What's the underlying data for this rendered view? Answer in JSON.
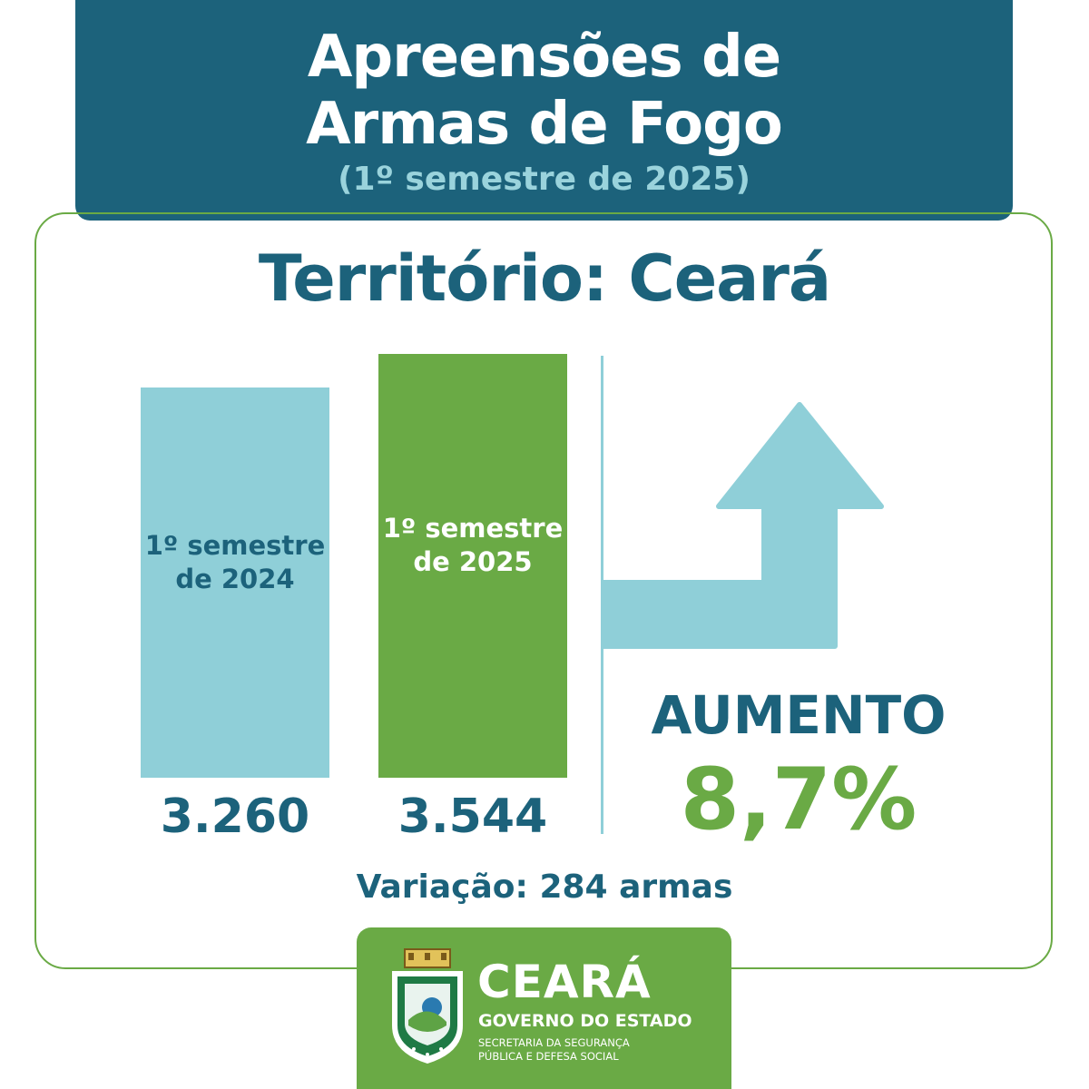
{
  "header": {
    "title_line1": "Apreensões de",
    "title_line2": "Armas de Fogo",
    "subtitle": "(1º semestre de 2025)"
  },
  "territory": "Território: Ceará",
  "chart_data": {
    "type": "bar",
    "categories": [
      "1º semestre de 2024",
      "1º semestre de 2025"
    ],
    "category_lines": [
      [
        "1º semestre",
        "de 2024"
      ],
      [
        "1º semestre",
        "de 2025"
      ]
    ],
    "values": [
      3260,
      3544
    ],
    "value_labels": [
      "3.260",
      "3.544"
    ],
    "colors": [
      "#8fcfd8",
      "#6aaa45"
    ],
    "title": "Apreensões de Armas de Fogo",
    "xlabel": "",
    "ylabel": "",
    "grid": false
  },
  "change": {
    "label": "AUMENTO",
    "percent": "8,7%",
    "direction": "up",
    "variation": "Variação: 284 armas"
  },
  "logo": {
    "name": "CEARÁ",
    "government": "GOVERNO DO ESTADO",
    "secretariat_line1": "SECRETARIA DA SEGURANÇA",
    "secretariat_line2": "PÚBLICA E DEFESA SOCIAL"
  },
  "colors": {
    "primary": "#1c627b",
    "accent_light": "#8fcfd8",
    "accent_green": "#6aaa45",
    "subtitle": "#9ad3dc"
  }
}
